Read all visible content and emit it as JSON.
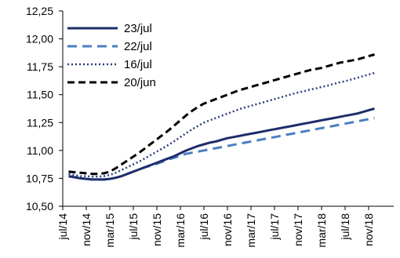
{
  "chart_data": {
    "type": "line",
    "title": "",
    "xlabel": "",
    "ylabel": "",
    "ylim": [
      10.5,
      12.25
    ],
    "grid": false,
    "legend_position": "top-left",
    "y_ticks": [
      "10,50",
      "10,75",
      "11,00",
      "11,25",
      "11,50",
      "11,75",
      "12,00",
      "12,25"
    ],
    "y_tick_values": [
      10.5,
      10.75,
      11.0,
      11.25,
      11.5,
      11.75,
      12.0,
      12.25
    ],
    "x_ticks": [
      "jul/14",
      "nov/14",
      "mar/15",
      "jul/15",
      "nov/15",
      "mar/16",
      "jul/16",
      "nov/16",
      "mar/17",
      "jul/17",
      "nov/17",
      "mar/18",
      "jul/18",
      "nov/18"
    ],
    "x": [
      "ago/14",
      "set/14",
      "out/14",
      "nov/14",
      "dez/14",
      "jan/15",
      "fev/15",
      "mar/15",
      "abr/15",
      "mai/15",
      "jun/15",
      "jul/15",
      "ago/15",
      "set/15",
      "out/15",
      "nov/15",
      "dez/15",
      "jan/16",
      "fev/16",
      "mar/16",
      "abr/16",
      "mai/16",
      "jun/16",
      "jul/16",
      "ago/16",
      "set/16",
      "out/16",
      "nov/16",
      "dez/16",
      "jan/17",
      "fev/17",
      "mar/17",
      "abr/17",
      "mai/17",
      "jun/17",
      "jul/17",
      "ago/17",
      "set/17",
      "out/17",
      "nov/17",
      "dez/17",
      "jan/18",
      "fev/18",
      "mar/18",
      "abr/18",
      "mai/18",
      "jun/18",
      "jul/18",
      "ago/18",
      "set/18",
      "out/18",
      "nov/18",
      "dez/18"
    ],
    "series": [
      {
        "name": "23/jul",
        "color": "#1f2d6b",
        "style": "solid",
        "values": [
          10.77,
          10.76,
          10.75,
          10.745,
          10.74,
          10.74,
          10.74,
          10.745,
          10.755,
          10.77,
          10.79,
          10.81,
          10.83,
          10.85,
          10.87,
          10.89,
          10.91,
          10.93,
          10.95,
          10.975,
          11.0,
          11.02,
          11.04,
          11.055,
          11.07,
          11.08,
          11.095,
          11.11,
          11.12,
          11.13,
          11.14,
          11.15,
          11.16,
          11.17,
          11.18,
          11.19,
          11.2,
          11.21,
          11.22,
          11.23,
          11.24,
          11.25,
          11.26,
          11.27,
          11.28,
          11.29,
          11.3,
          11.31,
          11.32,
          11.33,
          11.345,
          11.36,
          11.375
        ]
      },
      {
        "name": "22/jul",
        "color": "#4a7fc1",
        "style": "dashed",
        "values": [
          10.77,
          10.76,
          10.75,
          10.745,
          10.74,
          10.74,
          10.74,
          10.745,
          10.755,
          10.77,
          10.79,
          10.81,
          10.83,
          10.85,
          10.865,
          10.88,
          10.9,
          10.92,
          10.935,
          10.955,
          10.97,
          10.98,
          10.99,
          11.0,
          11.01,
          11.02,
          11.03,
          11.04,
          11.05,
          11.06,
          11.07,
          11.08,
          11.09,
          11.1,
          11.11,
          11.12,
          11.13,
          11.14,
          11.15,
          11.16,
          11.17,
          11.18,
          11.19,
          11.2,
          11.21,
          11.22,
          11.23,
          11.24,
          11.25,
          11.26,
          11.27,
          11.28,
          11.29
        ]
      },
      {
        "name": "16/jul",
        "color": "#2a3f7a",
        "style": "dotted",
        "values": [
          10.79,
          10.78,
          10.77,
          10.77,
          10.765,
          10.765,
          10.77,
          10.78,
          10.8,
          10.825,
          10.85,
          10.875,
          10.9,
          10.93,
          10.96,
          10.99,
          11.02,
          11.05,
          11.085,
          11.12,
          11.155,
          11.19,
          11.22,
          11.25,
          11.27,
          11.29,
          11.31,
          11.33,
          11.35,
          11.37,
          11.385,
          11.4,
          11.415,
          11.43,
          11.445,
          11.46,
          11.475,
          11.49,
          11.505,
          11.52,
          11.53,
          11.545,
          11.555,
          11.57,
          11.58,
          11.595,
          11.61,
          11.62,
          11.635,
          11.65,
          11.665,
          11.68,
          11.695
        ]
      },
      {
        "name": "20/jun",
        "color": "#000000",
        "style": "dashed",
        "values": [
          10.81,
          10.805,
          10.8,
          10.795,
          10.79,
          10.79,
          10.795,
          10.81,
          10.84,
          10.875,
          10.91,
          10.945,
          10.98,
          11.02,
          11.06,
          11.1,
          11.14,
          11.18,
          11.225,
          11.27,
          11.315,
          11.355,
          11.39,
          11.42,
          11.44,
          11.46,
          11.48,
          11.5,
          11.52,
          11.54,
          11.555,
          11.57,
          11.585,
          11.6,
          11.615,
          11.63,
          11.645,
          11.66,
          11.675,
          11.69,
          11.705,
          11.72,
          11.73,
          11.74,
          11.755,
          11.77,
          11.785,
          11.795,
          11.805,
          11.815,
          11.83,
          11.845,
          11.86
        ]
      }
    ]
  }
}
